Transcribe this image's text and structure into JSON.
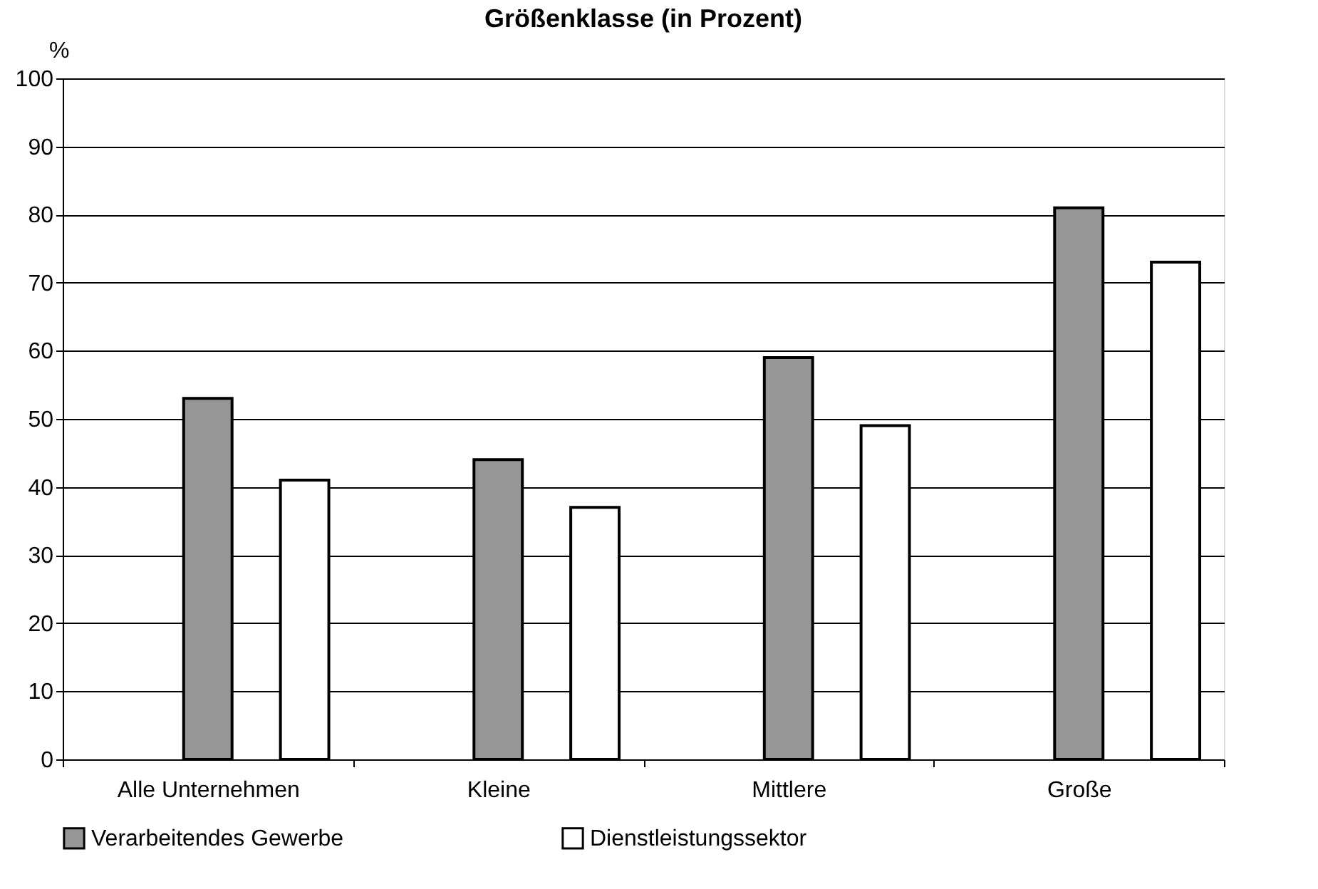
{
  "chart_data": {
    "type": "bar",
    "title": "Größenklasse (in Prozent)",
    "ylabel": "%",
    "categories": [
      "Alle Unternehmen",
      "Kleine",
      "Mittlere",
      "Große"
    ],
    "series": [
      {
        "name": "Verarbeitendes Gewerbe",
        "color": "#969696",
        "values": [
          53,
          44,
          59,
          81
        ]
      },
      {
        "name": "Dienstleistungssektor",
        "color": "#ffffff",
        "values": [
          41,
          37,
          49,
          73
        ]
      }
    ],
    "ylim": [
      0,
      100
    ],
    "yticks": [
      0,
      10,
      20,
      30,
      40,
      50,
      60,
      70,
      80,
      90,
      100
    ],
    "grid": "y",
    "legend": "bottom"
  }
}
